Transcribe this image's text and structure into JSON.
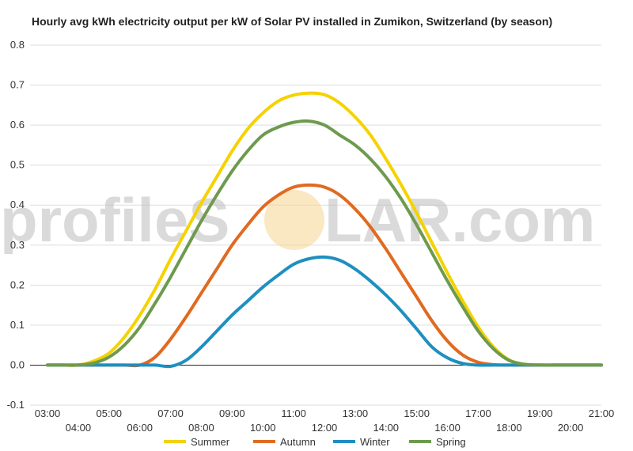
{
  "chart_data": {
    "type": "line",
    "title": "Hourly avg kWh electricity output per kW of Solar PV installed in Zumikon, Switzerland (by season)",
    "watermark": {
      "left": "profileS",
      "right": "LAR.com",
      "sun_color": "#f7d89a"
    },
    "xlabel": "",
    "ylabel": "",
    "ylim": [
      -0.1,
      0.8
    ],
    "y_ticks": [
      -0.1,
      0.0,
      0.1,
      0.2,
      0.3,
      0.4,
      0.5,
      0.6,
      0.7,
      0.8
    ],
    "y_tick_labels": [
      "-0.1",
      "0.0",
      "0.1",
      "0.2",
      "0.3",
      "0.4",
      "0.5",
      "0.6",
      "0.7",
      "0.8"
    ],
    "xlim": [
      3,
      21
    ],
    "x_tick_labels": [
      "03:00",
      "04:00",
      "05:00",
      "06:00",
      "07:00",
      "08:00",
      "09:00",
      "10:00",
      "11:00",
      "12:00",
      "13:00",
      "14:00",
      "15:00",
      "16:00",
      "17:00",
      "18:00",
      "19:00",
      "20:00",
      "21:00"
    ],
    "x": [
      3,
      3.5,
      4,
      4.5,
      5,
      5.5,
      6,
      6.5,
      7,
      7.5,
      8,
      8.5,
      9,
      9.5,
      10,
      10.5,
      11,
      11.5,
      12,
      12.5,
      13,
      13.5,
      14,
      14.5,
      15,
      15.5,
      16,
      16.5,
      17,
      17.5,
      18,
      18.5,
      19,
      19.5,
      20,
      20.5,
      21
    ],
    "grid": true,
    "legend_position": "bottom",
    "series": [
      {
        "name": "Summer",
        "color": "#f5d200",
        "values": [
          0,
          0,
          0,
          0.01,
          0.03,
          0.07,
          0.125,
          0.19,
          0.265,
          0.335,
          0.405,
          0.47,
          0.535,
          0.59,
          0.63,
          0.66,
          0.675,
          0.68,
          0.676,
          0.655,
          0.62,
          0.575,
          0.515,
          0.45,
          0.38,
          0.305,
          0.23,
          0.16,
          0.095,
          0.045,
          0.013,
          0.002,
          0,
          0,
          0,
          0,
          0
        ]
      },
      {
        "name": "Autumn",
        "color": "#e06a20",
        "values": [
          0,
          0,
          0,
          0,
          0,
          0,
          0,
          0.02,
          0.065,
          0.12,
          0.18,
          0.24,
          0.3,
          0.35,
          0.395,
          0.425,
          0.445,
          0.45,
          0.445,
          0.425,
          0.39,
          0.345,
          0.29,
          0.23,
          0.17,
          0.11,
          0.06,
          0.025,
          0.007,
          0.001,
          0,
          0,
          0,
          0,
          0,
          0,
          0
        ]
      },
      {
        "name": "Winter",
        "color": "#1f8fc0",
        "values": [
          0,
          0,
          0,
          0,
          0,
          0,
          0,
          0,
          -0.003,
          0.012,
          0.045,
          0.085,
          0.125,
          0.16,
          0.195,
          0.225,
          0.252,
          0.266,
          0.27,
          0.262,
          0.24,
          0.21,
          0.175,
          0.135,
          0.09,
          0.045,
          0.018,
          0.004,
          0,
          0,
          0,
          0,
          0,
          0,
          0,
          0,
          0
        ]
      },
      {
        "name": "Spring",
        "color": "#6e9a4e",
        "values": [
          0,
          0,
          0,
          0.005,
          0.02,
          0.05,
          0.095,
          0.155,
          0.22,
          0.29,
          0.36,
          0.425,
          0.485,
          0.535,
          0.575,
          0.595,
          0.607,
          0.61,
          0.6,
          0.575,
          0.55,
          0.515,
          0.47,
          0.415,
          0.35,
          0.28,
          0.21,
          0.145,
          0.085,
          0.04,
          0.012,
          0.002,
          0,
          0,
          0,
          0,
          0
        ]
      }
    ]
  }
}
